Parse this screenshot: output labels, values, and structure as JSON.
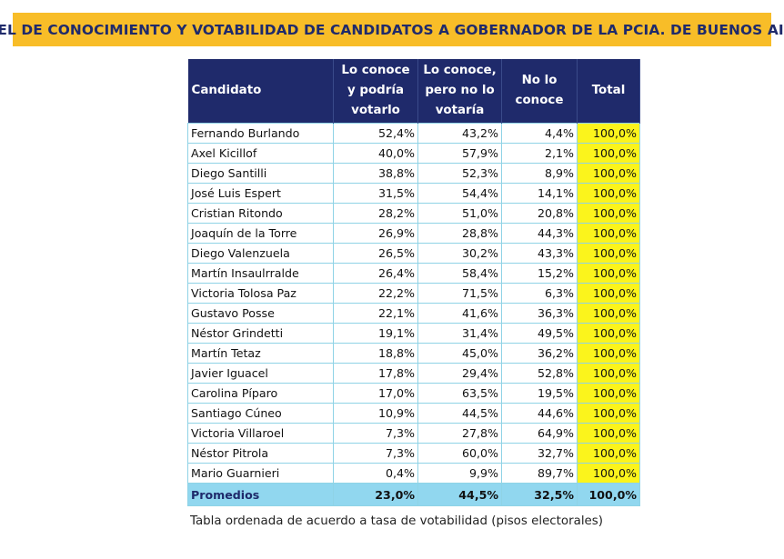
{
  "title": "NIVEL DE CONOCIMIENTO Y VOTABILIDAD DE CANDIDATOS A GOBERNADOR DE LA PCIA. DE BUENOS AIRES",
  "table": {
    "headers": {
      "name": "Candidato",
      "col1": "Lo conoce y podría votarlo",
      "col2": "Lo conoce, pero no lo votaría",
      "col3": "No lo conoce",
      "total": "Total"
    },
    "rows": [
      {
        "name": "Fernando Burlando",
        "v1": "52,4%",
        "v2": "43,2%",
        "v3": "4,4%",
        "total": "100,0%"
      },
      {
        "name": "Axel Kicillof",
        "v1": "40,0%",
        "v2": "57,9%",
        "v3": "2,1%",
        "total": "100,0%"
      },
      {
        "name": "Diego Santilli",
        "v1": "38,8%",
        "v2": "52,3%",
        "v3": "8,9%",
        "total": "100,0%"
      },
      {
        "name": "José Luis Espert",
        "v1": "31,5%",
        "v2": "54,4%",
        "v3": "14,1%",
        "total": "100,0%"
      },
      {
        "name": "Cristian Ritondo",
        "v1": "28,2%",
        "v2": "51,0%",
        "v3": "20,8%",
        "total": "100,0%"
      },
      {
        "name": "Joaquín de la Torre",
        "v1": "26,9%",
        "v2": "28,8%",
        "v3": "44,3%",
        "total": "100,0%"
      },
      {
        "name": "Diego Valenzuela",
        "v1": "26,5%",
        "v2": "30,2%",
        "v3": "43,3%",
        "total": "100,0%"
      },
      {
        "name": "Martín Insaulrralde",
        "v1": "26,4%",
        "v2": "58,4%",
        "v3": "15,2%",
        "total": "100,0%"
      },
      {
        "name": "Victoria Tolosa Paz",
        "v1": "22,2%",
        "v2": "71,5%",
        "v3": "6,3%",
        "total": "100,0%"
      },
      {
        "name": "Gustavo Posse",
        "v1": "22,1%",
        "v2": "41,6%",
        "v3": "36,3%",
        "total": "100,0%"
      },
      {
        "name": "Néstor Grindetti",
        "v1": "19,1%",
        "v2": "31,4%",
        "v3": "49,5%",
        "total": "100,0%"
      },
      {
        "name": "Martín Tetaz",
        "v1": "18,8%",
        "v2": "45,0%",
        "v3": "36,2%",
        "total": "100,0%"
      },
      {
        "name": "Javier Iguacel",
        "v1": "17,8%",
        "v2": "29,4%",
        "v3": "52,8%",
        "total": "100,0%"
      },
      {
        "name": "Carolina Píparo",
        "v1": "17,0%",
        "v2": "63,5%",
        "v3": "19,5%",
        "total": "100,0%"
      },
      {
        "name": "Santiago Cúneo",
        "v1": "10,9%",
        "v2": "44,5%",
        "v3": "44,6%",
        "total": "100,0%"
      },
      {
        "name": "Victoria Villaroel",
        "v1": "7,3%",
        "v2": "27,8%",
        "v3": "64,9%",
        "total": "100,0%"
      },
      {
        "name": "Néstor Pitrola",
        "v1": "7,3%",
        "v2": "60,0%",
        "v3": "32,7%",
        "total": "100,0%"
      },
      {
        "name": "Mario Guarnieri",
        "v1": "0,4%",
        "v2": "9,9%",
        "v3": "89,7%",
        "total": "100,0%"
      }
    ],
    "footer": {
      "name": "Promedios",
      "v1": "23,0%",
      "v2": "44,5%",
      "v3": "32,5%",
      "total": "100,0%"
    }
  },
  "caption": "Tabla ordenada de acuerdo a tasa de votabilidad (pisos electorales)",
  "colors": {
    "title_bg": "#f8bd28",
    "title_text": "#1f2a6b",
    "header_bg": "#1f2a6b",
    "total_bg": "#fbf41c",
    "footer_bg": "#91d7ef",
    "grid": "#8fd3e6"
  }
}
